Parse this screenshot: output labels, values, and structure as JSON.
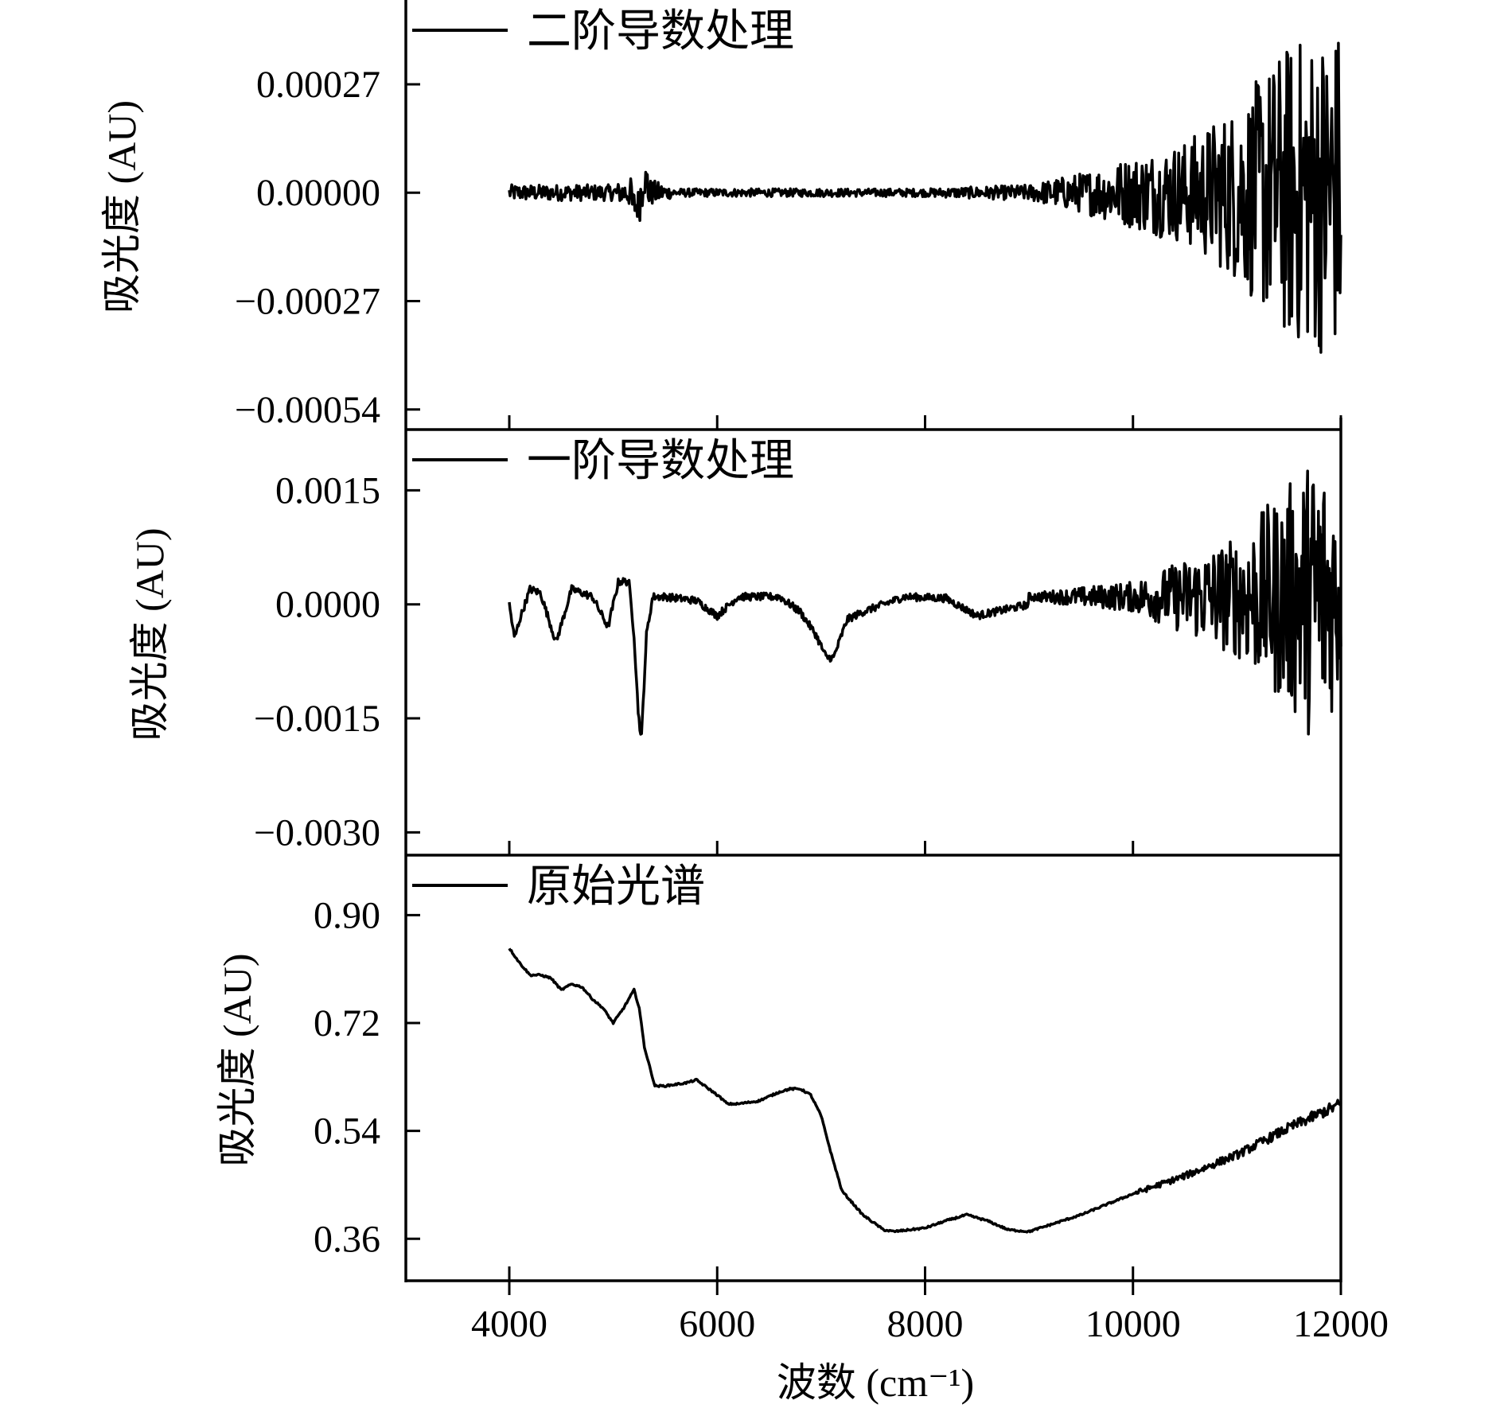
{
  "figure": {
    "xlabel": "波数 (cm⁻¹)",
    "x_ticks": [
      4000,
      6000,
      8000,
      10000,
      12000
    ],
    "x_tick_labels": [
      "4000",
      "6000",
      "8000",
      "10000",
      "12000"
    ]
  },
  "colors": {
    "line": "#000000",
    "axis": "#000000"
  },
  "chart_data": [
    {
      "type": "line",
      "panel": "top",
      "legend": "二阶导数处理",
      "legend_position": "top-left",
      "ylabel": "吸光度 (AU)",
      "xlim": [
        3000,
        12000
      ],
      "ylim": [
        -0.00059,
        0.00048
      ],
      "y_ticks": [
        0.00027,
        0.0,
        -0.00027,
        -0.00054
      ],
      "y_tick_labels": [
        "0.00027",
        "0.00000",
        "−0.00027",
        "−0.00054"
      ],
      "x_range": [
        4000,
        12000
      ],
      "x": [
        4000,
        4500,
        5000,
        5200,
        5300,
        5600,
        6000,
        7000,
        8000,
        9000,
        9500,
        10000,
        10500,
        11000,
        11500,
        12000
      ],
      "envelope": [
        2e-05,
        2e-05,
        2e-05,
        4e-05,
        4e-05,
        1e-05,
        1e-05,
        1e-05,
        1e-05,
        2e-05,
        5e-05,
        9e-05,
        0.00013,
        0.00022,
        0.00038,
        0.00042
      ],
      "features": [
        {
          "x": 5200,
          "y": -4e-05
        },
        {
          "x": 5300,
          "y": 4e-05
        }
      ]
    },
    {
      "type": "line",
      "panel": "middle",
      "legend": "一阶导数处理",
      "legend_position": "top-left",
      "ylabel": "吸光度 (AU)",
      "xlim": [
        3000,
        12000
      ],
      "ylim": [
        -0.0033,
        0.0023
      ],
      "y_ticks": [
        0.0015,
        0.0,
        -0.0015,
        -0.003
      ],
      "y_tick_labels": [
        "0.0015",
        "0.0000",
        "−0.0015",
        "−0.0030"
      ],
      "x": [
        4000,
        4050,
        4100,
        4200,
        4300,
        4450,
        4600,
        4800,
        4950,
        5050,
        5150,
        5200,
        5240,
        5270,
        5320,
        5380,
        5500,
        5800,
        6000,
        6200,
        6600,
        6800,
        6950,
        7050,
        7120,
        7250,
        7400,
        7600,
        7800,
        8200,
        8500,
        9000,
        9500,
        10000
      ],
      "values": [
        0.0,
        -0.00045,
        -0.0002,
        0.0002,
        0.00015,
        -0.0005,
        0.0002,
        0.0001,
        -0.0003,
        0.0003,
        0.0003,
        -0.0004,
        -0.0014,
        -0.0018,
        -0.0004,
        0.0001,
        0.0001,
        5e-05,
        -0.00015,
        0.0001,
        0.0001,
        -0.0001,
        -0.0004,
        -0.0007,
        -0.0007,
        -0.0002,
        -0.0001,
        0.0,
        0.0001,
        8e-05,
        -0.00015,
        0.0,
        0.0001,
        0.0001
      ],
      "noise_envelope": {
        "x": [
          9000,
          10000,
          10500,
          11000,
          11500,
          11800,
          12000
        ],
        "amplitude": [
          5e-05,
          0.0002,
          0.0005,
          0.0008,
          0.0015,
          0.002,
          0.0012
        ]
      }
    },
    {
      "type": "line",
      "panel": "bottom",
      "legend": "原始光谱",
      "legend_position": "top-left",
      "ylabel": "吸光度 (AU)",
      "xlim": [
        3000,
        12000
      ],
      "ylim": [
        0.29,
        1.0
      ],
      "y_ticks": [
        0.9,
        0.72,
        0.54,
        0.36
      ],
      "y_tick_labels": [
        "0.90",
        "0.72",
        "0.54",
        "0.36"
      ],
      "x": [
        4000,
        4100,
        4200,
        4300,
        4400,
        4500,
        4600,
        4700,
        4800,
        4900,
        5000,
        5100,
        5200,
        5250,
        5300,
        5400,
        5500,
        5700,
        5800,
        6000,
        6100,
        6200,
        6400,
        6600,
        6700,
        6800,
        6900,
        7000,
        7100,
        7200,
        7400,
        7600,
        7700,
        8000,
        8200,
        8400,
        8600,
        8800,
        9000,
        9500,
        10000,
        10500,
        11000,
        11500,
        12000
      ],
      "values": [
        0.845,
        0.82,
        0.8,
        0.8,
        0.795,
        0.775,
        0.785,
        0.78,
        0.76,
        0.745,
        0.72,
        0.745,
        0.775,
        0.745,
        0.68,
        0.615,
        0.615,
        0.62,
        0.625,
        0.6,
        0.585,
        0.585,
        0.59,
        0.605,
        0.61,
        0.61,
        0.6,
        0.565,
        0.5,
        0.44,
        0.4,
        0.375,
        0.372,
        0.378,
        0.39,
        0.4,
        0.39,
        0.375,
        0.372,
        0.4,
        0.435,
        0.465,
        0.5,
        0.545,
        0.585
      ]
    }
  ]
}
